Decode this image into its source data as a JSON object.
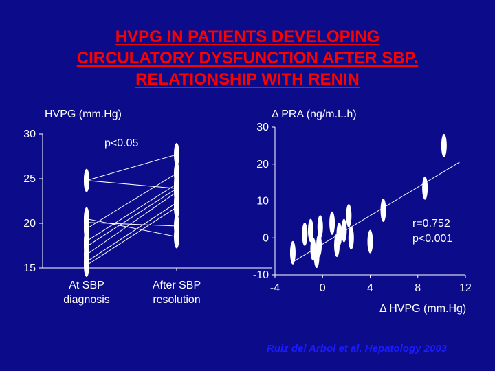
{
  "title_lines": [
    "HVPG IN PATIENTS DEVELOPING",
    "CIRCULATORY DYSFUNCTION AFTER SBP.",
    "RELATIONSHIP WITH RENIN"
  ],
  "citation": "Ruiz del Arbol et al. Hepatology 2003",
  "colors": {
    "background": "#0c0c8a",
    "title": "#ff0000",
    "foreground": "#ffffff",
    "citation": "#1b1bff"
  },
  "chart_data": [
    {
      "type": "line",
      "ylabel": "HVPG (mm.Hg)",
      "categories": [
        "At SBP diagnosis",
        "After SBP resolution"
      ],
      "yticks": [
        15,
        20,
        25,
        30
      ],
      "ylim": [
        15,
        30
      ],
      "annotation": "p<0.05",
      "pairs": [
        [
          24.8,
          27.7
        ],
        [
          24.8,
          23.9
        ],
        [
          20.5,
          18.5
        ],
        [
          20.1,
          19.7
        ],
        [
          19.4,
          25.6
        ],
        [
          18.0,
          24.4
        ],
        [
          17.4,
          23.9
        ],
        [
          16.5,
          23.5
        ],
        [
          15.7,
          22.3
        ],
        [
          15.3,
          21.8
        ]
      ]
    },
    {
      "type": "scatter",
      "xlabel": "Δ HVPG (mm.Hg)",
      "ylabel": "Δ PRA (ng/m.L.h)",
      "xticks": [
        -4,
        0,
        4,
        8,
        12
      ],
      "yticks": [
        -10,
        0,
        10,
        20,
        30
      ],
      "xlim": [
        -4,
        12
      ],
      "ylim": [
        -10,
        30
      ],
      "annotation_lines": [
        "r=0.752",
        "p<0.001"
      ],
      "points": [
        [
          -2.5,
          -4
        ],
        [
          -1.5,
          1
        ],
        [
          -1,
          2
        ],
        [
          -0.8,
          -3
        ],
        [
          -0.5,
          -5
        ],
        [
          -0.3,
          -2
        ],
        [
          -0.2,
          3
        ],
        [
          0.8,
          4
        ],
        [
          1.2,
          -2
        ],
        [
          1.4,
          1
        ],
        [
          1.8,
          2
        ],
        [
          2.2,
          6
        ],
        [
          2.4,
          0
        ],
        [
          4,
          -1
        ],
        [
          5.1,
          7.5
        ],
        [
          8.6,
          13.5
        ],
        [
          10.2,
          25
        ]
      ],
      "regression": {
        "x": [
          -2.5,
          11.5
        ],
        "y": [
          -6.5,
          20.5
        ]
      }
    }
  ]
}
